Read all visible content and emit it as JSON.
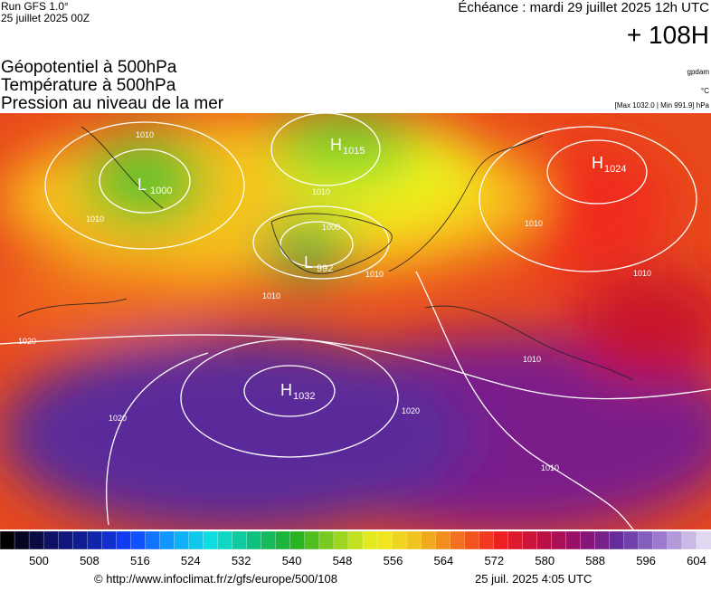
{
  "header": {
    "run": "Run GFS 1.0°",
    "run_date": "25 juillet 2025 00Z",
    "echeance": "Échéance : mardi 29 juillet 2025 12h UTC",
    "lead": "+ 108H"
  },
  "layers": [
    "Géopotentiel à 500hPa",
    "Température à 500hPa",
    "Pression au niveau de la mer"
  ],
  "units": {
    "geopotential": "gpdam",
    "temperature": "°C",
    "pressure": "[Max 1032.0 | Min 991.9] hPa"
  },
  "pressure_centers": [
    {
      "letter": "L",
      "value": "1000"
    },
    {
      "letter": "H",
      "value": "1015"
    },
    {
      "letter": "H",
      "value": "1024"
    },
    {
      "letter": "L",
      "value": "992"
    },
    {
      "letter": "H",
      "value": "1032"
    }
  ],
  "isobar_labels": [
    "1010",
    "1010",
    "1000",
    "1010",
    "1010",
    "1010",
    "1020",
    "1020",
    "1020",
    "1010",
    "1010",
    "1010",
    "1010"
  ],
  "colorbar": {
    "ticks": [
      500,
      508,
      516,
      524,
      532,
      540,
      548,
      556,
      564,
      572,
      580,
      588,
      596,
      604
    ]
  },
  "footer": {
    "url": "© http://www.infoclimat.fr/z/gfs/europe/500/108",
    "timestamp": "25 juil. 2025  4:05 UTC"
  }
}
